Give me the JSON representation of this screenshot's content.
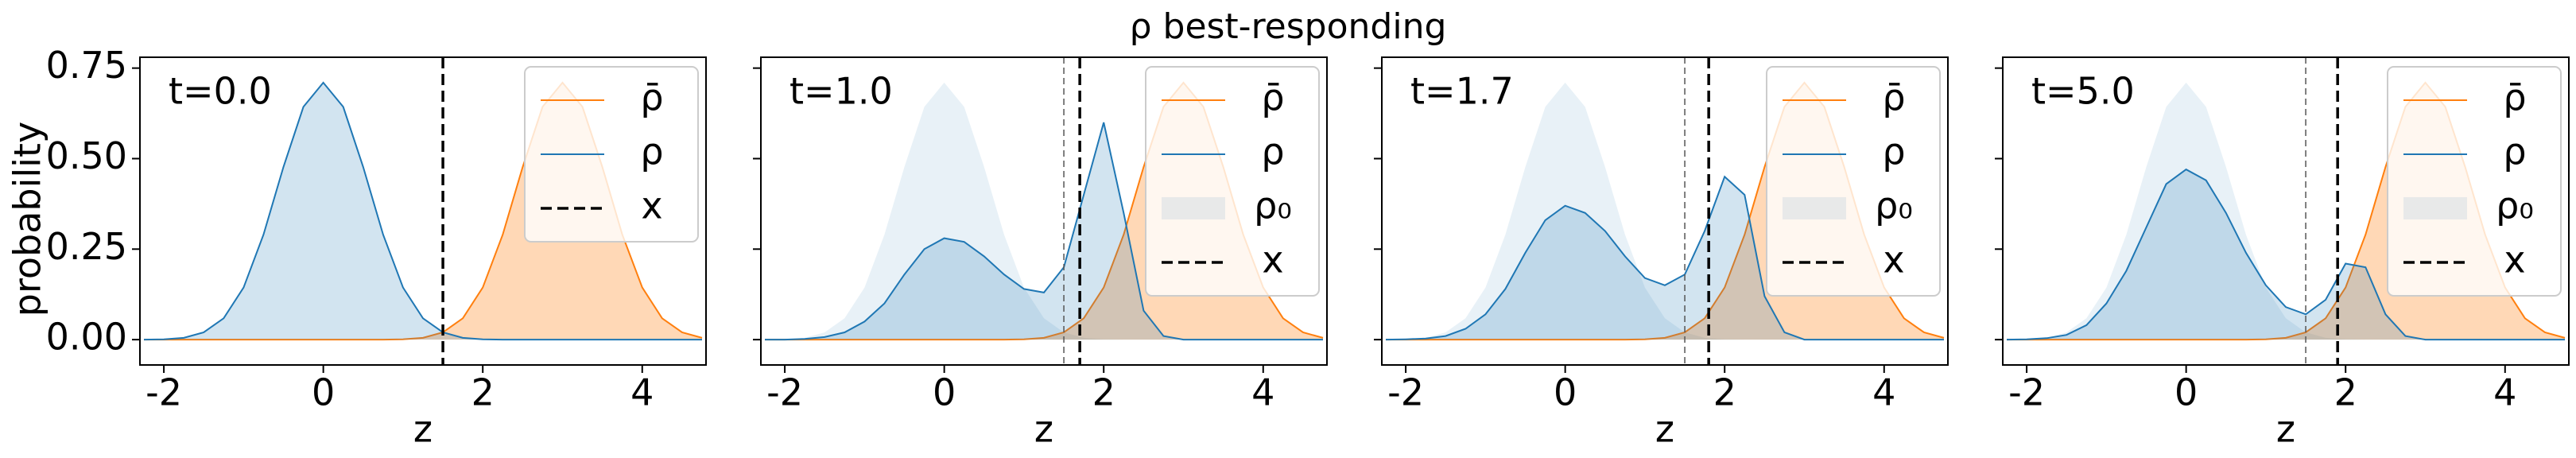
{
  "chart_data": [
    {
      "type": "line",
      "title": "ρ best-responding",
      "annotation": "t=0.0",
      "xlabel": "z",
      "ylabel": "probability",
      "x": [
        -2.25,
        -2,
        -1.75,
        -1.5,
        -1.25,
        -1,
        -0.75,
        -0.5,
        -0.25,
        0,
        0.25,
        0.5,
        0.75,
        1,
        1.25,
        1.5,
        1.75,
        2,
        2.25,
        2.5,
        2.75,
        3,
        3.25,
        3.5,
        3.75,
        4,
        4.25,
        4.5,
        4.75
      ],
      "series": [
        {
          "name": "ρ̄",
          "color": "#ff7f0e",
          "values": [
            0,
            0,
            0,
            0,
            0,
            0,
            0,
            0,
            0,
            0,
            0,
            0,
            0,
            0.001,
            0.005,
            0.02,
            0.059,
            0.144,
            0.29,
            0.477,
            0.643,
            0.71,
            0.643,
            0.477,
            0.29,
            0.144,
            0.059,
            0.02,
            0.005
          ]
        },
        {
          "name": "ρ",
          "color": "#1f77b4",
          "values": [
            0,
            0.001,
            0.005,
            0.02,
            0.059,
            0.144,
            0.29,
            0.477,
            0.643,
            0.71,
            0.643,
            0.477,
            0.29,
            0.144,
            0.059,
            0.02,
            0.005,
            0.001,
            0,
            0,
            0,
            0,
            0,
            0,
            0,
            0,
            0,
            0,
            0
          ]
        }
      ],
      "x_line": {
        "name": "x",
        "value": 1.5
      },
      "xlim": [
        -2.3,
        4.8
      ],
      "xticks": [
        -2,
        0,
        2,
        4
      ],
      "ylim": [
        -0.07,
        0.78
      ],
      "yticks": [
        {
          "value": 0,
          "label": "0.00"
        },
        {
          "value": 0.25,
          "label": "0.25"
        },
        {
          "value": 0.5,
          "label": "0.50"
        },
        {
          "value": 0.75,
          "label": "0.75"
        }
      ]
    },
    {
      "type": "line",
      "annotation": "t=1.0",
      "xlabel": "z",
      "x": [
        -2.25,
        -2,
        -1.75,
        -1.5,
        -1.25,
        -1,
        -0.75,
        -0.5,
        -0.25,
        0,
        0.25,
        0.5,
        0.75,
        1,
        1.25,
        1.5,
        1.75,
        2,
        2.25,
        2.5,
        2.75,
        3,
        3.25,
        3.5,
        3.75,
        4,
        4.25,
        4.5,
        4.75
      ],
      "series": [
        {
          "name": "ρ̄",
          "color": "#ff7f0e",
          "values": [
            0,
            0,
            0,
            0,
            0,
            0,
            0,
            0,
            0,
            0,
            0,
            0,
            0,
            0.001,
            0.005,
            0.02,
            0.059,
            0.144,
            0.29,
            0.477,
            0.643,
            0.71,
            0.643,
            0.477,
            0.29,
            0.144,
            0.059,
            0.02,
            0.005
          ]
        },
        {
          "name": "ρ",
          "color": "#1f77b4",
          "values": [
            0,
            0,
            0.002,
            0.007,
            0.02,
            0.05,
            0.1,
            0.18,
            0.25,
            0.28,
            0.27,
            0.23,
            0.18,
            0.14,
            0.13,
            0.2,
            0.4,
            0.6,
            0.35,
            0.08,
            0.01,
            0,
            0,
            0,
            0,
            0,
            0,
            0,
            0
          ]
        },
        {
          "name": "ρ₀",
          "color": "#1f77b4",
          "values": [
            0,
            0.001,
            0.005,
            0.02,
            0.059,
            0.144,
            0.29,
            0.477,
            0.643,
            0.71,
            0.643,
            0.477,
            0.29,
            0.144,
            0.059,
            0.02,
            0.005,
            0.001,
            0,
            0,
            0,
            0,
            0,
            0,
            0,
            0,
            0,
            0,
            0
          ]
        }
      ],
      "x_line": {
        "name": "x",
        "value": 1.7
      },
      "x_initial": 1.5,
      "xlim": [
        -2.3,
        4.8
      ],
      "xticks": [
        -2,
        0,
        2,
        4
      ],
      "ylim": [
        -0.07,
        0.78
      ]
    },
    {
      "type": "line",
      "annotation": "t=1.7",
      "xlabel": "z",
      "x": [
        -2.25,
        -2,
        -1.75,
        -1.5,
        -1.25,
        -1,
        -0.75,
        -0.5,
        -0.25,
        0,
        0.25,
        0.5,
        0.75,
        1,
        1.25,
        1.5,
        1.75,
        2,
        2.25,
        2.5,
        2.75,
        3,
        3.25,
        3.5,
        3.75,
        4,
        4.25,
        4.5,
        4.75
      ],
      "series": [
        {
          "name": "ρ̄",
          "color": "#ff7f0e",
          "values": [
            0,
            0,
            0,
            0,
            0,
            0,
            0,
            0,
            0,
            0,
            0,
            0,
            0,
            0.001,
            0.005,
            0.02,
            0.059,
            0.144,
            0.29,
            0.477,
            0.643,
            0.71,
            0.643,
            0.477,
            0.29,
            0.144,
            0.059,
            0.02,
            0.005
          ]
        },
        {
          "name": "ρ",
          "color": "#1f77b4",
          "values": [
            0,
            0.001,
            0.003,
            0.01,
            0.03,
            0.07,
            0.14,
            0.24,
            0.33,
            0.37,
            0.35,
            0.3,
            0.23,
            0.17,
            0.15,
            0.18,
            0.3,
            0.45,
            0.4,
            0.12,
            0.02,
            0,
            0,
            0,
            0,
            0,
            0,
            0,
            0
          ]
        },
        {
          "name": "ρ₀",
          "color": "#1f77b4",
          "values": [
            0,
            0.001,
            0.005,
            0.02,
            0.059,
            0.144,
            0.29,
            0.477,
            0.643,
            0.71,
            0.643,
            0.477,
            0.29,
            0.144,
            0.059,
            0.02,
            0.005,
            0.001,
            0,
            0,
            0,
            0,
            0,
            0,
            0,
            0,
            0,
            0,
            0
          ]
        }
      ],
      "x_line": {
        "name": "x",
        "value": 1.8
      },
      "x_initial": 1.5,
      "xlim": [
        -2.3,
        4.8
      ],
      "xticks": [
        -2,
        0,
        2,
        4
      ],
      "ylim": [
        -0.07,
        0.78
      ]
    },
    {
      "type": "line",
      "annotation": "t=5.0",
      "xlabel": "z",
      "x": [
        -2.25,
        -2,
        -1.75,
        -1.5,
        -1.25,
        -1,
        -0.75,
        -0.5,
        -0.25,
        0,
        0.25,
        0.5,
        0.75,
        1,
        1.25,
        1.5,
        1.75,
        2,
        2.25,
        2.5,
        2.75,
        3,
        3.25,
        3.5,
        3.75,
        4,
        4.25,
        4.5,
        4.75
      ],
      "series": [
        {
          "name": "ρ̄",
          "color": "#ff7f0e",
          "values": [
            0,
            0,
            0,
            0,
            0,
            0,
            0,
            0,
            0,
            0,
            0,
            0,
            0,
            0.001,
            0.005,
            0.02,
            0.059,
            0.144,
            0.29,
            0.477,
            0.643,
            0.71,
            0.643,
            0.477,
            0.29,
            0.144,
            0.059,
            0.02,
            0.005
          ]
        },
        {
          "name": "ρ",
          "color": "#1f77b4",
          "values": [
            0,
            0.001,
            0.004,
            0.013,
            0.04,
            0.1,
            0.19,
            0.31,
            0.43,
            0.47,
            0.44,
            0.35,
            0.24,
            0.15,
            0.09,
            0.07,
            0.11,
            0.21,
            0.2,
            0.07,
            0.01,
            0,
            0,
            0,
            0,
            0,
            0,
            0,
            0
          ]
        },
        {
          "name": "ρ₀",
          "color": "#1f77b4",
          "values": [
            0,
            0.001,
            0.005,
            0.02,
            0.059,
            0.144,
            0.29,
            0.477,
            0.643,
            0.71,
            0.643,
            0.477,
            0.29,
            0.144,
            0.059,
            0.02,
            0.005,
            0.001,
            0,
            0,
            0,
            0,
            0,
            0,
            0,
            0,
            0,
            0,
            0
          ]
        }
      ],
      "x_line": {
        "name": "x",
        "value": 1.9
      },
      "x_initial": 1.5,
      "xlim": [
        -2.3,
        4.8
      ],
      "xticks": [
        -2,
        0,
        2,
        4
      ],
      "ylim": [
        -0.07,
        0.78
      ]
    }
  ]
}
